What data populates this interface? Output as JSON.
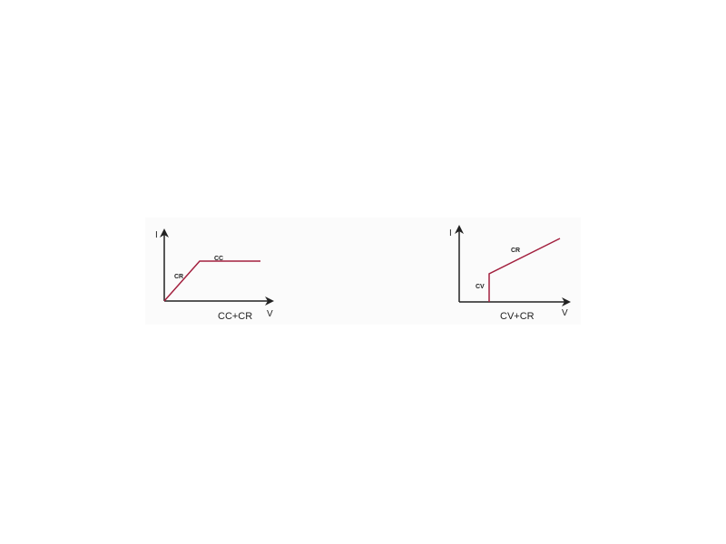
{
  "diagrams": [
    {
      "caption": "CC+CR",
      "y_axis_label": "I",
      "x_axis_label": "V",
      "segments": [
        "CR",
        "CC"
      ],
      "curve_color": "#a3213f"
    },
    {
      "caption": "CV+CR",
      "y_axis_label": "I",
      "x_axis_label": "V",
      "segments": [
        "CV",
        "CR"
      ],
      "curve_color": "#a3213f"
    }
  ]
}
